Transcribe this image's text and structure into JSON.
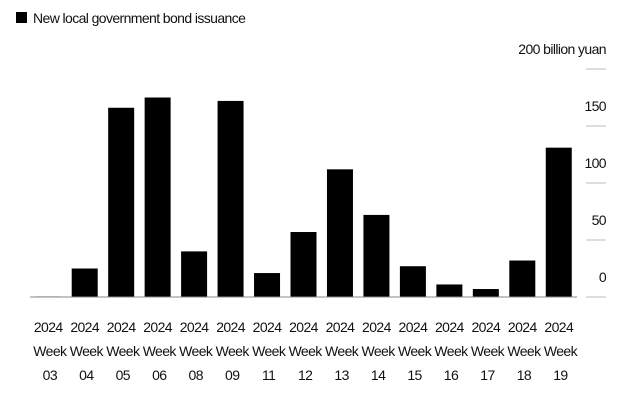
{
  "chart_data": {
    "type": "bar",
    "legend": "New local government bond issuance",
    "categories": [
      "2024 Week 03",
      "2024 Week 04",
      "2024 Week 05",
      "2024 Week 06",
      "2024 Week 08",
      "2024 Week 09",
      "2024 Week 11",
      "2024 Week 12",
      "2024 Week 13",
      "2024 Week 14",
      "2024 Week 15",
      "2024 Week 16",
      "2024 Week 17",
      "2024 Week 18",
      "2024 Week 19"
    ],
    "values": [
      0.5,
      25,
      166,
      175,
      40,
      172,
      21,
      57,
      112,
      72,
      27,
      11,
      7,
      32,
      131
    ],
    "color": "#000000",
    "ylim": [
      0,
      200
    ],
    "yticks": [
      0,
      50,
      100,
      150,
      {
        "value": 200,
        "label": "200 billion yuan"
      }
    ],
    "y_axis_side": "right"
  }
}
